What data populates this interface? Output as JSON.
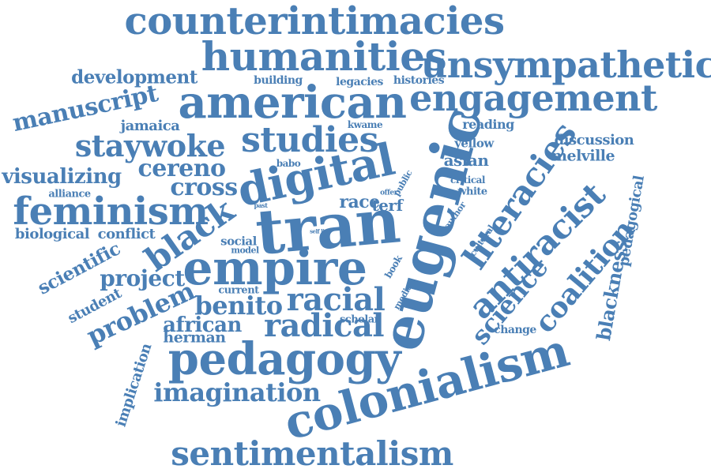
{
  "colors": {
    "word": "#4a7fb5",
    "background": "#ffffff"
  },
  "words": [
    {
      "text": "counterintimacies"
    },
    {
      "text": "humanities"
    },
    {
      "text": "unsympathetic"
    },
    {
      "text": "development"
    },
    {
      "text": "building"
    },
    {
      "text": "legacies"
    },
    {
      "text": "histories"
    },
    {
      "text": "american"
    },
    {
      "text": "engagement"
    },
    {
      "text": "manuscript"
    },
    {
      "text": "jamaica"
    },
    {
      "text": "kwame"
    },
    {
      "text": "reading"
    },
    {
      "text": "discussion"
    },
    {
      "text": "staywoke"
    },
    {
      "text": "studies"
    },
    {
      "text": "yellow"
    },
    {
      "text": "asian"
    },
    {
      "text": "melville"
    },
    {
      "text": "visualizing"
    },
    {
      "text": "cereno"
    },
    {
      "text": "digital"
    },
    {
      "text": "babo"
    },
    {
      "text": "public"
    },
    {
      "text": "critical"
    },
    {
      "text": "white"
    },
    {
      "text": "alliance"
    },
    {
      "text": "cross"
    },
    {
      "text": "offer"
    },
    {
      "text": "feminism"
    },
    {
      "text": "race"
    },
    {
      "text": "terf"
    },
    {
      "text": "past"
    },
    {
      "text": "eugenic"
    },
    {
      "text": "literacies"
    },
    {
      "text": "antiracist"
    },
    {
      "text": "pedagogical"
    },
    {
      "text": "tran"
    },
    {
      "text": "author"
    },
    {
      "text": "biological"
    },
    {
      "text": "conflict"
    },
    {
      "text": "black"
    },
    {
      "text": "self live"
    },
    {
      "text": "cultural"
    },
    {
      "text": "social"
    },
    {
      "text": "model"
    },
    {
      "text": "scientific"
    },
    {
      "text": "coalition"
    },
    {
      "text": "blackness"
    },
    {
      "text": "empire"
    },
    {
      "text": "book"
    },
    {
      "text": "project"
    },
    {
      "text": "media"
    },
    {
      "text": "science"
    },
    {
      "text": "student"
    },
    {
      "text": "current"
    },
    {
      "text": "racial"
    },
    {
      "text": "benito"
    },
    {
      "text": "problem"
    },
    {
      "text": "scholar"
    },
    {
      "text": "change"
    },
    {
      "text": "african"
    },
    {
      "text": "radical"
    },
    {
      "text": "herman"
    },
    {
      "text": "pedagogy"
    },
    {
      "text": "colonialism"
    },
    {
      "text": "implication"
    },
    {
      "text": "imagination"
    },
    {
      "text": "sentimentalism"
    }
  ]
}
